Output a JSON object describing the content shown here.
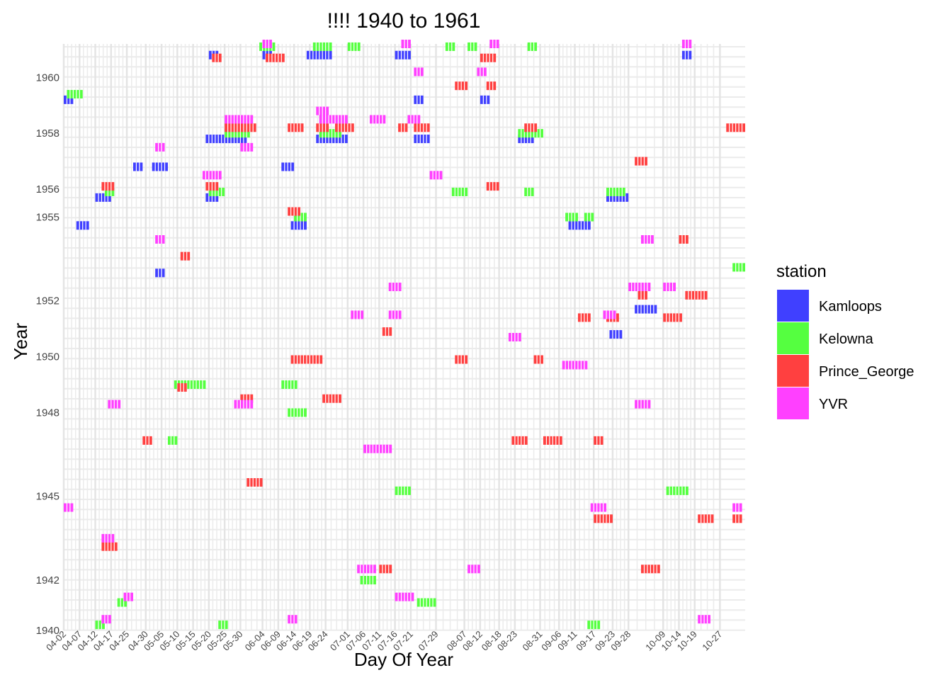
{
  "chart_data": {
    "type": "heatmap",
    "title": "!!!! 1940 to 1961",
    "xlabel": "Day Of Year",
    "ylabel": "Year",
    "x_range_day_of_year": [
      92,
      308
    ],
    "y_range": [
      1940,
      1961
    ],
    "y_ticks": [
      "1942",
      "1945",
      "1948",
      "1950",
      "1952",
      "1955",
      "1956",
      "1958",
      "1960"
    ],
    "y_tick_values": [
      1941.8,
      1944.8,
      1947.8,
      1949.8,
      1951.8,
      1954.8,
      1955.8,
      1957.8,
      1959.8
    ],
    "x_ticks": [
      "04-02",
      "04-07",
      "04-12",
      "04-17",
      "04-25",
      "04-30",
      "05-05",
      "05-10",
      "05-15",
      "05-20",
      "05-25",
      "05-30",
      "06-04",
      "06-09",
      "06-14",
      "06-19",
      "06-24",
      "07-01",
      "07-06",
      "07-11",
      "07-16",
      "07-21",
      "07-29",
      "08-07",
      "08-12",
      "08-18",
      "08-23",
      "08-31",
      "09-06",
      "09-11",
      "09-17",
      "09-23",
      "09-28",
      "10-09",
      "10-14",
      "10-19",
      "10-27"
    ],
    "x_tick_days": [
      92,
      97,
      102,
      107,
      112,
      118,
      123,
      128,
      133,
      138,
      143,
      148,
      155,
      160,
      165,
      170,
      175,
      182,
      187,
      192,
      197,
      202,
      210,
      219,
      224,
      230,
      235,
      243,
      249,
      254,
      260,
      266,
      271,
      282,
      287,
      292,
      300
    ],
    "grid": true,
    "legend_title": "station",
    "legend_position": "right",
    "series": [
      {
        "name": "Kamloops",
        "color": "#4040FF",
        "segments": [
          [
            1960.6,
            138,
            141
          ],
          [
            1960.6,
            155,
            158
          ],
          [
            1960.6,
            169,
            177
          ],
          [
            1960.6,
            197,
            202
          ],
          [
            1960.6,
            288,
            291
          ],
          [
            1959.0,
            92,
            95
          ],
          [
            1959.0,
            203,
            206
          ],
          [
            1959.0,
            224,
            227
          ],
          [
            1957.6,
            137,
            150
          ],
          [
            1957.6,
            172,
            182
          ],
          [
            1957.6,
            203,
            208
          ],
          [
            1957.6,
            236,
            241
          ],
          [
            1956.6,
            114,
            117
          ],
          [
            1956.6,
            120,
            125
          ],
          [
            1956.6,
            161,
            165
          ],
          [
            1955.5,
            102,
            107
          ],
          [
            1955.5,
            137,
            141
          ],
          [
            1955.5,
            264,
            271
          ],
          [
            1954.5,
            96,
            100
          ],
          [
            1954.5,
            164,
            169
          ],
          [
            1954.5,
            252,
            259
          ],
          [
            1952.8,
            121,
            124
          ],
          [
            1951.5,
            273,
            280
          ],
          [
            1950.6,
            265,
            269
          ]
        ]
      },
      {
        "name": "Kelowna",
        "color": "#55FF40",
        "segments": [
          [
            1960.9,
            154,
            159
          ],
          [
            1960.9,
            171,
            177
          ],
          [
            1960.9,
            182,
            186
          ],
          [
            1960.9,
            213,
            216
          ],
          [
            1960.9,
            220,
            223
          ],
          [
            1960.9,
            239,
            242
          ],
          [
            1959.2,
            93,
            98
          ],
          [
            1957.8,
            143,
            151
          ],
          [
            1957.8,
            173,
            180
          ],
          [
            1957.8,
            236,
            244
          ],
          [
            1955.7,
            105,
            108
          ],
          [
            1955.7,
            138,
            143
          ],
          [
            1955.7,
            215,
            220
          ],
          [
            1955.7,
            238,
            241
          ],
          [
            1955.7,
            264,
            270
          ],
          [
            1954.8,
            165,
            169
          ],
          [
            1954.8,
            251,
            255
          ],
          [
            1954.8,
            257,
            260
          ],
          [
            1953.0,
            304,
            308
          ],
          [
            1948.8,
            127,
            137
          ],
          [
            1948.8,
            161,
            166
          ],
          [
            1947.8,
            163,
            169
          ],
          [
            1946.8,
            125,
            128
          ],
          [
            1945.0,
            197,
            202
          ],
          [
            1945.0,
            283,
            290
          ],
          [
            1941.8,
            186,
            191
          ],
          [
            1941.0,
            109,
            112
          ],
          [
            1941.0,
            204,
            210
          ],
          [
            1940.2,
            102,
            105
          ],
          [
            1940.2,
            141,
            144
          ],
          [
            1940.2,
            258,
            262
          ]
        ]
      },
      {
        "name": "Prince_George",
        "color": "#FF4040",
        "segments": [
          [
            1960.5,
            139,
            142
          ],
          [
            1960.5,
            156,
            162
          ],
          [
            1960.5,
            224,
            229
          ],
          [
            1959.5,
            216,
            220
          ],
          [
            1959.5,
            226,
            229
          ],
          [
            1958.0,
            143,
            153
          ],
          [
            1958.0,
            163,
            168
          ],
          [
            1958.0,
            172,
            176
          ],
          [
            1958.0,
            178,
            184
          ],
          [
            1958.0,
            198,
            201
          ],
          [
            1958.0,
            203,
            208
          ],
          [
            1958.0,
            238,
            242
          ],
          [
            1958.0,
            302,
            308
          ],
          [
            1956.8,
            273,
            277
          ],
          [
            1955.9,
            104,
            108
          ],
          [
            1955.9,
            137,
            141
          ],
          [
            1955.9,
            226,
            230
          ],
          [
            1955.0,
            163,
            167
          ],
          [
            1954.0,
            287,
            290
          ],
          [
            1953.4,
            129,
            132
          ],
          [
            1952.0,
            274,
            277
          ],
          [
            1952.0,
            289,
            296
          ],
          [
            1951.2,
            255,
            259
          ],
          [
            1951.2,
            264,
            268
          ],
          [
            1951.2,
            282,
            288
          ],
          [
            1950.7,
            193,
            196
          ],
          [
            1949.7,
            164,
            174
          ],
          [
            1949.7,
            216,
            220
          ],
          [
            1949.7,
            241,
            244
          ],
          [
            1948.7,
            128,
            131
          ],
          [
            1948.3,
            148,
            152
          ],
          [
            1948.3,
            174,
            180
          ],
          [
            1946.8,
            117,
            120
          ],
          [
            1946.8,
            234,
            239
          ],
          [
            1946.8,
            244,
            250
          ],
          [
            1946.8,
            260,
            263
          ],
          [
            1945.3,
            150,
            155
          ],
          [
            1944.0,
            260,
            266
          ],
          [
            1944.0,
            293,
            298
          ],
          [
            1944.0,
            304,
            307
          ],
          [
            1943.0,
            104,
            109
          ],
          [
            1942.2,
            192,
            196
          ],
          [
            1942.2,
            275,
            281
          ]
        ]
      },
      {
        "name": "YVR",
        "color": "#FF40FF",
        "segments": [
          [
            1961.0,
            155,
            158
          ],
          [
            1961.0,
            199,
            202
          ],
          [
            1961.0,
            227,
            230
          ],
          [
            1961.0,
            288,
            291
          ],
          [
            1960.0,
            203,
            206
          ],
          [
            1960.0,
            223,
            226
          ],
          [
            1958.6,
            172,
            176
          ],
          [
            1958.3,
            143,
            152
          ],
          [
            1958.3,
            173,
            182
          ],
          [
            1958.3,
            189,
            194
          ],
          [
            1958.3,
            201,
            205
          ],
          [
            1957.3,
            148,
            152
          ],
          [
            1957.3,
            121,
            124
          ],
          [
            1956.3,
            136,
            142
          ],
          [
            1956.3,
            208,
            212
          ],
          [
            1954.0,
            121,
            124
          ],
          [
            1954.0,
            275,
            279
          ],
          [
            1952.3,
            195,
            199
          ],
          [
            1952.3,
            271,
            278
          ],
          [
            1952.3,
            282,
            286
          ],
          [
            1951.3,
            183,
            187
          ],
          [
            1951.3,
            195,
            199
          ],
          [
            1951.3,
            263,
            267
          ],
          [
            1950.5,
            233,
            237
          ],
          [
            1949.5,
            250,
            258
          ],
          [
            1948.1,
            106,
            110
          ],
          [
            1948.1,
            146,
            152
          ],
          [
            1948.1,
            273,
            278
          ],
          [
            1946.5,
            187,
            196
          ],
          [
            1944.4,
            92,
            95
          ],
          [
            1944.4,
            259,
            264
          ],
          [
            1944.4,
            304,
            307
          ],
          [
            1943.3,
            104,
            108
          ],
          [
            1942.2,
            185,
            191
          ],
          [
            1942.2,
            220,
            224
          ],
          [
            1941.2,
            197,
            203
          ],
          [
            1941.2,
            111,
            114
          ],
          [
            1940.4,
            104,
            107
          ],
          [
            1940.4,
            163,
            166
          ],
          [
            1940.4,
            293,
            297
          ]
        ]
      }
    ]
  }
}
